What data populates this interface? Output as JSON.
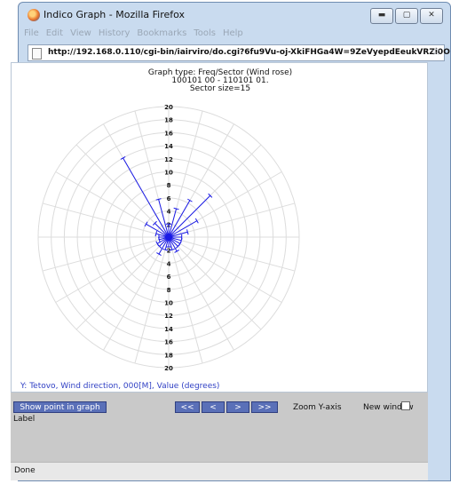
{
  "window": {
    "title": "Indico Graph - Mozilla Firefox",
    "buttons": [
      "minimize",
      "maximize",
      "close"
    ]
  },
  "menubar": [
    {
      "label": "File"
    },
    {
      "label": "Edit"
    },
    {
      "label": "View"
    },
    {
      "label": "History"
    },
    {
      "label": "Bookmarks"
    },
    {
      "label": "Tools"
    },
    {
      "label": "Help"
    }
  ],
  "urlbar": {
    "url": "http://192.168.0.110/cgi-bin/iairviro/do.cgi?6fu9Vu-oj-XkiFHGa4W=9ZeVyepdEeukVRZi0O"
  },
  "graph": {
    "title_line1": "Graph type: Freq/Sector (Wind rose)",
    "title_line2": "100101 00 - 110101 01.",
    "title_line3": "Sector size=15",
    "y_label": "Y: Tetovo, Wind direction, 000[M], Value (degrees)",
    "accent_color": "#1a1ae6",
    "grid_color": "#dcdcdc"
  },
  "chart_data": {
    "type": "wind-rose",
    "rings": [
      2,
      4,
      6,
      8,
      10,
      12,
      14,
      16,
      18,
      20
    ],
    "range_max": 20,
    "sector_size_deg": 15,
    "tick_labels_up": [
      "20",
      "18",
      "16",
      "14",
      "12",
      "10",
      "8",
      "6",
      "4",
      "2"
    ],
    "tick_labels_down": [
      "2",
      "4",
      "6",
      "8",
      "10",
      "12",
      "14",
      "16",
      "18",
      "20"
    ],
    "sector_values": [
      {
        "dir_deg": 0,
        "value": 2
      },
      {
        "dir_deg": 15,
        "value": 4.5
      },
      {
        "dir_deg": 30,
        "value": 6.5
      },
      {
        "dir_deg": 45,
        "value": 9
      },
      {
        "dir_deg": 60,
        "value": 5
      },
      {
        "dir_deg": 75,
        "value": 3
      },
      {
        "dir_deg": 90,
        "value": 2
      },
      {
        "dir_deg": 105,
        "value": 2
      },
      {
        "dir_deg": 120,
        "value": 2
      },
      {
        "dir_deg": 135,
        "value": 2
      },
      {
        "dir_deg": 150,
        "value": 2.5
      },
      {
        "dir_deg": 165,
        "value": 2
      },
      {
        "dir_deg": 180,
        "value": 1.5
      },
      {
        "dir_deg": 195,
        "value": 2
      },
      {
        "dir_deg": 210,
        "value": 3
      },
      {
        "dir_deg": 225,
        "value": 2
      },
      {
        "dir_deg": 240,
        "value": 2
      },
      {
        "dir_deg": 255,
        "value": 1.5
      },
      {
        "dir_deg": 270,
        "value": 1.5
      },
      {
        "dir_deg": 285,
        "value": 2
      },
      {
        "dir_deg": 300,
        "value": 4
      },
      {
        "dir_deg": 315,
        "value": 3
      },
      {
        "dir_deg": 330,
        "value": 14
      },
      {
        "dir_deg": 345,
        "value": 6
      }
    ]
  },
  "controls": {
    "show_point_label": "Show point in graph",
    "nav": [
      "<<",
      "<",
      ">",
      ">>"
    ],
    "zoom_label": "Zoom Y-axis",
    "new_window_label": "New window",
    "new_window_checked": false,
    "label_text": "Label"
  },
  "status": {
    "text": "Done"
  }
}
